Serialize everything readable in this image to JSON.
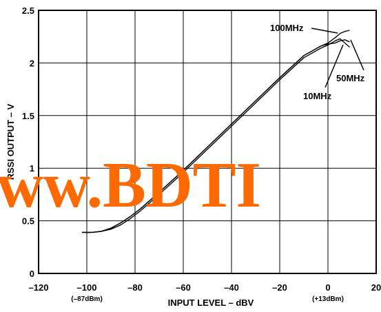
{
  "chart_data": {
    "type": "line",
    "xlabel": "INPUT LEVEL – dBV",
    "ylabel": "RSSI OUTPUT – V",
    "xlim": [
      -120,
      20
    ],
    "ylim": [
      0,
      2.5
    ],
    "x_ticks": [
      -120,
      -100,
      -80,
      -60,
      -40,
      -20,
      0,
      20
    ],
    "x_tick_labels": [
      "–120",
      "–100",
      "–80",
      "–60",
      "–40",
      "–20",
      "0",
      "20"
    ],
    "y_ticks": [
      0,
      0.5,
      1,
      1.5,
      2,
      2.5
    ],
    "y_tick_labels": [
      "0",
      "0.5",
      "1",
      "1.5",
      "2",
      "2.5"
    ],
    "grid": true,
    "x_sub_labels": [
      {
        "x": -100,
        "text": "(–87dBm)"
      },
      {
        "x": 0,
        "text": "(+13dBm)"
      }
    ],
    "series": [
      {
        "name": "10MHz",
        "x": [
          -102,
          -98,
          -94,
          -90,
          -86,
          -82,
          -78,
          -70,
          -60,
          -50,
          -40,
          -30,
          -20,
          -10,
          -3,
          0,
          3,
          5,
          7,
          9
        ],
        "y": [
          0.39,
          0.39,
          0.4,
          0.42,
          0.46,
          0.52,
          0.59,
          0.75,
          0.96,
          1.18,
          1.4,
          1.62,
          1.84,
          2.05,
          2.14,
          2.17,
          2.21,
          2.23,
          2.19,
          2.15
        ]
      },
      {
        "name": "50MHz",
        "x": [
          -102,
          -98,
          -94,
          -90,
          -86,
          -82,
          -78,
          -70,
          -60,
          -50,
          -40,
          -30,
          -20,
          -10,
          -3,
          0,
          3,
          5,
          7,
          9
        ],
        "y": [
          0.39,
          0.39,
          0.4,
          0.43,
          0.48,
          0.54,
          0.61,
          0.77,
          0.98,
          1.2,
          1.42,
          1.64,
          1.86,
          2.07,
          2.16,
          2.18,
          2.19,
          2.21,
          2.22,
          2.2
        ]
      },
      {
        "name": "100MHz",
        "x": [
          -102,
          -98,
          -94,
          -90,
          -86,
          -82,
          -78,
          -70,
          -60,
          -50,
          -40,
          -30,
          -20,
          -10,
          -3,
          0,
          3,
          5,
          7,
          9
        ],
        "y": [
          0.39,
          0.39,
          0.4,
          0.43,
          0.48,
          0.54,
          0.61,
          0.77,
          0.98,
          1.2,
          1.42,
          1.64,
          1.86,
          2.07,
          2.16,
          2.19,
          2.24,
          2.28,
          2.3,
          2.31
        ]
      }
    ],
    "annotations": [
      "100MHz",
      "50MHz",
      "10MHz"
    ],
    "watermark": "ww.BDTI"
  }
}
